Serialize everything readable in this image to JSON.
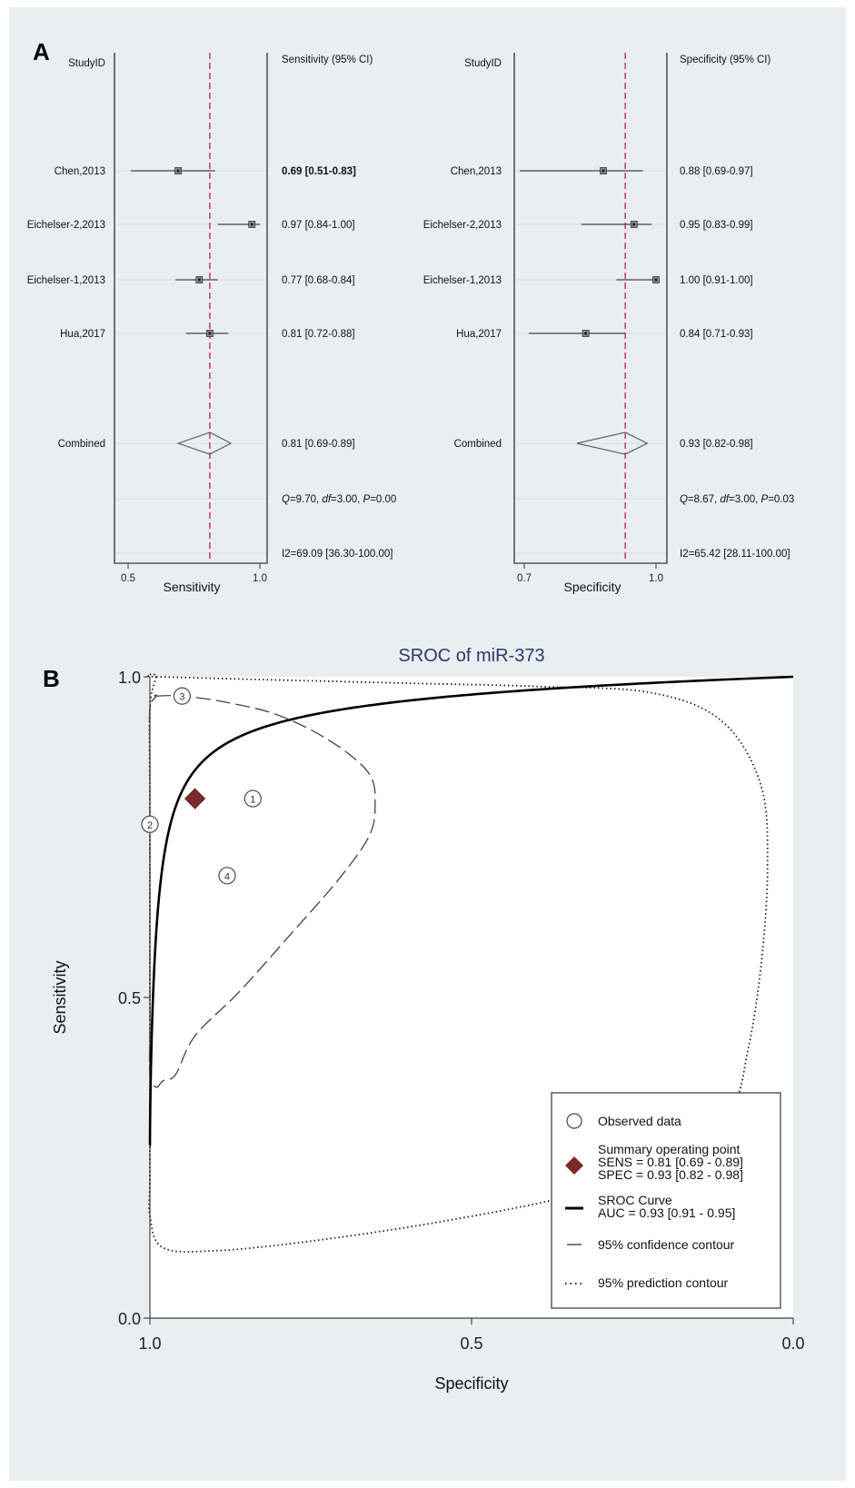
{
  "figure": {
    "background": "#e9eef0"
  },
  "chart_data": [
    {
      "panel": "A",
      "type": "forest",
      "measure": "Sensitivity",
      "header_study": "StudyID",
      "header_ci": "Sensitivity (95% CI)",
      "xlabel": "Sensitivity",
      "xlim": [
        0.5,
        1.0
      ],
      "xticks": [
        "0.5",
        "1.0"
      ],
      "reference_line": 0.81,
      "studies": [
        {
          "name": "Chen,2013",
          "est": 0.69,
          "lo": 0.51,
          "hi": 0.83,
          "label": "0.69 [0.51-0.83]",
          "bold": true
        },
        {
          "name": "Eichelser-2,2013",
          "est": 0.97,
          "lo": 0.84,
          "hi": 1.0,
          "label": "0.97 [0.84-1.00]",
          "bold": false
        },
        {
          "name": "Eichelser-1,2013",
          "est": 0.77,
          "lo": 0.68,
          "hi": 0.84,
          "label": "0.77 [0.68-0.84]",
          "bold": false
        },
        {
          "name": "Hua,2017",
          "est": 0.81,
          "lo": 0.72,
          "hi": 0.88,
          "label": "0.81 [0.72-0.88]",
          "bold": false
        }
      ],
      "combined": {
        "name": "Combined",
        "est": 0.81,
        "lo": 0.69,
        "hi": 0.89,
        "label": "0.81 [0.69-0.89]"
      },
      "heterogeneity_q": {
        "Q": "9.70",
        "df": "3.00",
        "P": "0.00"
      },
      "i2": "I2=69.09 [36.30-100.00]"
    },
    {
      "panel": "A",
      "type": "forest",
      "measure": "Specificity",
      "header_study": "StudyID",
      "header_ci": "Specificity (95% CI)",
      "xlabel": "Specificity",
      "xlim": [
        0.7,
        1.0
      ],
      "xticks": [
        "0.7",
        "1.0"
      ],
      "reference_line": 0.93,
      "studies": [
        {
          "name": "Chen,2013",
          "est": 0.88,
          "lo": 0.69,
          "hi": 0.97,
          "label": "0.88 [0.69-0.97]"
        },
        {
          "name": "Eichelser-2,2013",
          "est": 0.95,
          "lo": 0.83,
          "hi": 0.99,
          "label": "0.95 [0.83-0.99]"
        },
        {
          "name": "Eichelser-1,2013",
          "est": 1.0,
          "lo": 0.91,
          "hi": 1.0,
          "label": "1.00 [0.91-1.00]"
        },
        {
          "name": "Hua,2017",
          "est": 0.84,
          "lo": 0.71,
          "hi": 0.93,
          "label": "0.84 [0.71-0.93]"
        }
      ],
      "combined": {
        "name": "Combined",
        "est": 0.93,
        "lo": 0.82,
        "hi": 0.98,
        "label": "0.93 [0.82-0.98]"
      },
      "heterogeneity_q": {
        "Q": "8.67",
        "df": "3.00",
        "P": "0.03"
      },
      "i2": "I2=65.42 [28.11-100.00]"
    },
    {
      "panel": "B",
      "type": "scatter",
      "title": "SROC of miR-373",
      "xlabel": "Specificity",
      "ylabel": "Sensitivity",
      "xlim": [
        1.0,
        0.0
      ],
      "ylim": [
        0.0,
        1.0
      ],
      "xticks": [
        "1.0",
        "0.5",
        "0.0"
      ],
      "yticks": [
        "0.0",
        "0.5",
        "1.0"
      ],
      "observed": [
        {
          "id": "1",
          "spec": 0.84,
          "sens": 0.81
        },
        {
          "id": "2",
          "spec": 1.0,
          "sens": 0.77
        },
        {
          "id": "3",
          "spec": 0.95,
          "sens": 0.97
        },
        {
          "id": "4",
          "spec": 0.88,
          "sens": 0.69
        }
      ],
      "summary_point": {
        "spec": 0.93,
        "sens": 0.81,
        "color": "#7b2a2c"
      },
      "sroc_curve": {
        "auc": 0.93
      },
      "confidence_contour": [
        [
          0.99,
          0.97
        ],
        [
          0.95,
          0.97
        ],
        [
          0.88,
          0.96
        ],
        [
          0.8,
          0.94
        ],
        [
          0.72,
          0.9
        ],
        [
          0.66,
          0.85
        ],
        [
          0.65,
          0.8
        ],
        [
          0.66,
          0.75
        ],
        [
          0.71,
          0.68
        ],
        [
          0.78,
          0.6
        ],
        [
          0.86,
          0.51
        ],
        [
          0.93,
          0.44
        ],
        [
          0.96,
          0.38
        ],
        [
          0.98,
          0.37
        ],
        [
          0.99,
          0.36
        ],
        [
          1.0,
          0.38
        ],
        [
          1.0,
          0.46
        ],
        [
          1.0,
          0.6
        ],
        [
          1.0,
          0.75
        ],
        [
          1.0,
          0.88
        ],
        [
          1.0,
          0.95
        ],
        [
          0.99,
          0.97
        ]
      ],
      "prediction_contour": [
        [
          0.99,
          1.0
        ],
        [
          0.8,
          0.995
        ],
        [
          0.6,
          0.99
        ],
        [
          0.4,
          0.985
        ],
        [
          0.22,
          0.975
        ],
        [
          0.11,
          0.93
        ],
        [
          0.05,
          0.83
        ],
        [
          0.04,
          0.7
        ],
        [
          0.05,
          0.55
        ],
        [
          0.07,
          0.42
        ],
        [
          0.1,
          0.32
        ],
        [
          0.2,
          0.24
        ],
        [
          0.35,
          0.19
        ],
        [
          0.55,
          0.15
        ],
        [
          0.75,
          0.12
        ],
        [
          0.9,
          0.105
        ],
        [
          0.98,
          0.11
        ],
        [
          1.0,
          0.16
        ],
        [
          1.0,
          0.22
        ],
        [
          1.0,
          0.4
        ],
        [
          1.0,
          0.6
        ],
        [
          1.0,
          0.8
        ],
        [
          1.0,
          0.95
        ],
        [
          0.99,
          1.0
        ]
      ],
      "legend": {
        "position": "bottom-right",
        "observed_label": "Observed data",
        "summary_line1": "Summary operating point",
        "summary_line2": "SENS = 0.81 [0.69 - 0.89]",
        "summary_line3": "SPEC = 0.93 [0.82 - 0.98]",
        "sroc_line1": "SROC Curve",
        "sroc_line2": "AUC = 0.93 [0.91 - 0.95]",
        "confidence_label": "95% confidence contour",
        "prediction_label": "95% prediction contour"
      }
    }
  ],
  "panel_labels": {
    "a": "A",
    "b": "B"
  },
  "colors": {
    "reference_line": "#c9446b",
    "title": "#2a3a6c",
    "summary_marker": "#7b2a2c"
  }
}
